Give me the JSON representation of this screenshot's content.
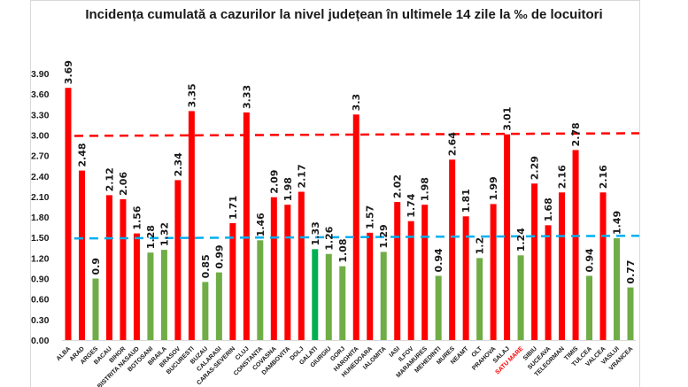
{
  "chart_data": {
    "type": "bar",
    "title": "Incidența cumulată a cazurilor la nivel județean în ultimele 14 zile la ‰ de locuitori",
    "xlabel": "",
    "ylabel": "",
    "ylim": [
      0,
      3.9
    ],
    "yticks": [
      "0.00",
      "0.30",
      "0.60",
      "0.90",
      "1.20",
      "1.50",
      "1.80",
      "2.10",
      "2.40",
      "2.70",
      "3.00",
      "3.30",
      "3.60",
      "3.90"
    ],
    "ytick_values": [
      0,
      0.3,
      0.6,
      0.9,
      1.2,
      1.5,
      1.8,
      2.1,
      2.4,
      2.7,
      3.0,
      3.3,
      3.6,
      3.9
    ],
    "grid": false,
    "legend": "none",
    "categories": [
      "ALBA",
      "ARAD",
      "ARGES",
      "BACAU",
      "BIHOR",
      "BISTRITA NASAUD",
      "BOTOSANI",
      "BRAILA",
      "BRASOV",
      "BUCURESTI",
      "BUZAU",
      "CALARASI",
      "CARAS-SEVERIN",
      "CLUJ",
      "CONSTANTA",
      "COVASNA",
      "DAMBOVITA",
      "DOLJ",
      "GALATI",
      "GIURGIU",
      "GORJ",
      "HARGHITA",
      "HUNEDOARA",
      "IALOMITA",
      "IASI",
      "ILFOV",
      "MARAMURES",
      "MEHEDINTI",
      "MURES",
      "NEAMT",
      "OLT",
      "PRAHOVA",
      "SALAJ",
      "SATU MARE",
      "SIBIU",
      "SUCEAVA",
      "TELEORMAN",
      "TIMIS",
      "TULCEA",
      "VALCEA",
      "VASLUI",
      "VRANCEA"
    ],
    "values": [
      3.69,
      2.48,
      0.9,
      2.12,
      2.06,
      1.56,
      1.28,
      1.32,
      2.34,
      3.35,
      0.85,
      0.99,
      1.71,
      3.33,
      1.46,
      2.09,
      1.98,
      2.17,
      1.33,
      1.26,
      1.08,
      3.3,
      1.57,
      1.29,
      2.02,
      1.74,
      1.98,
      0.94,
      2.64,
      1.81,
      1.2,
      1.99,
      3.01,
      1.24,
      2.29,
      1.68,
      2.16,
      2.78,
      0.94,
      2.16,
      1.49,
      0.77
    ],
    "data_labels": [
      "3.69",
      "2.48",
      "0.9",
      "2.12",
      "2.06",
      "1.56",
      "1.28",
      "1.32",
      "2.34",
      "3.35",
      "0.85",
      "0.99",
      "1.71",
      "3.33",
      "1.46",
      "2.09",
      "1.98",
      "2.17",
      "1.33",
      "1.26",
      "1.08",
      "3.3",
      "1.57",
      "1.29",
      "2.02",
      "1.74",
      "1.98",
      "0.94",
      "2.64",
      "1.81",
      "1.2",
      "1.99",
      "3.01",
      "1.24",
      "2.29",
      "1.68",
      "2.16",
      "2.78",
      "0.94",
      "2.16",
      "1.49",
      "0.77"
    ],
    "highlighted_category": "SATU MARE",
    "highlighted_category_bars": [
      "GALATI"
    ],
    "reference_lines": [
      {
        "name": "threshold-3",
        "value": 3.0,
        "color": "#ff0000",
        "style": "dashed"
      },
      {
        "name": "threshold-1.5",
        "value": 1.5,
        "color": "#00b0f0",
        "style": "dashed"
      }
    ],
    "colors": {
      "above_threshold": "#ff0000",
      "below_threshold": "#70ad47",
      "galati_bar": "#00b050",
      "highlight_label": "#ff0000"
    }
  }
}
